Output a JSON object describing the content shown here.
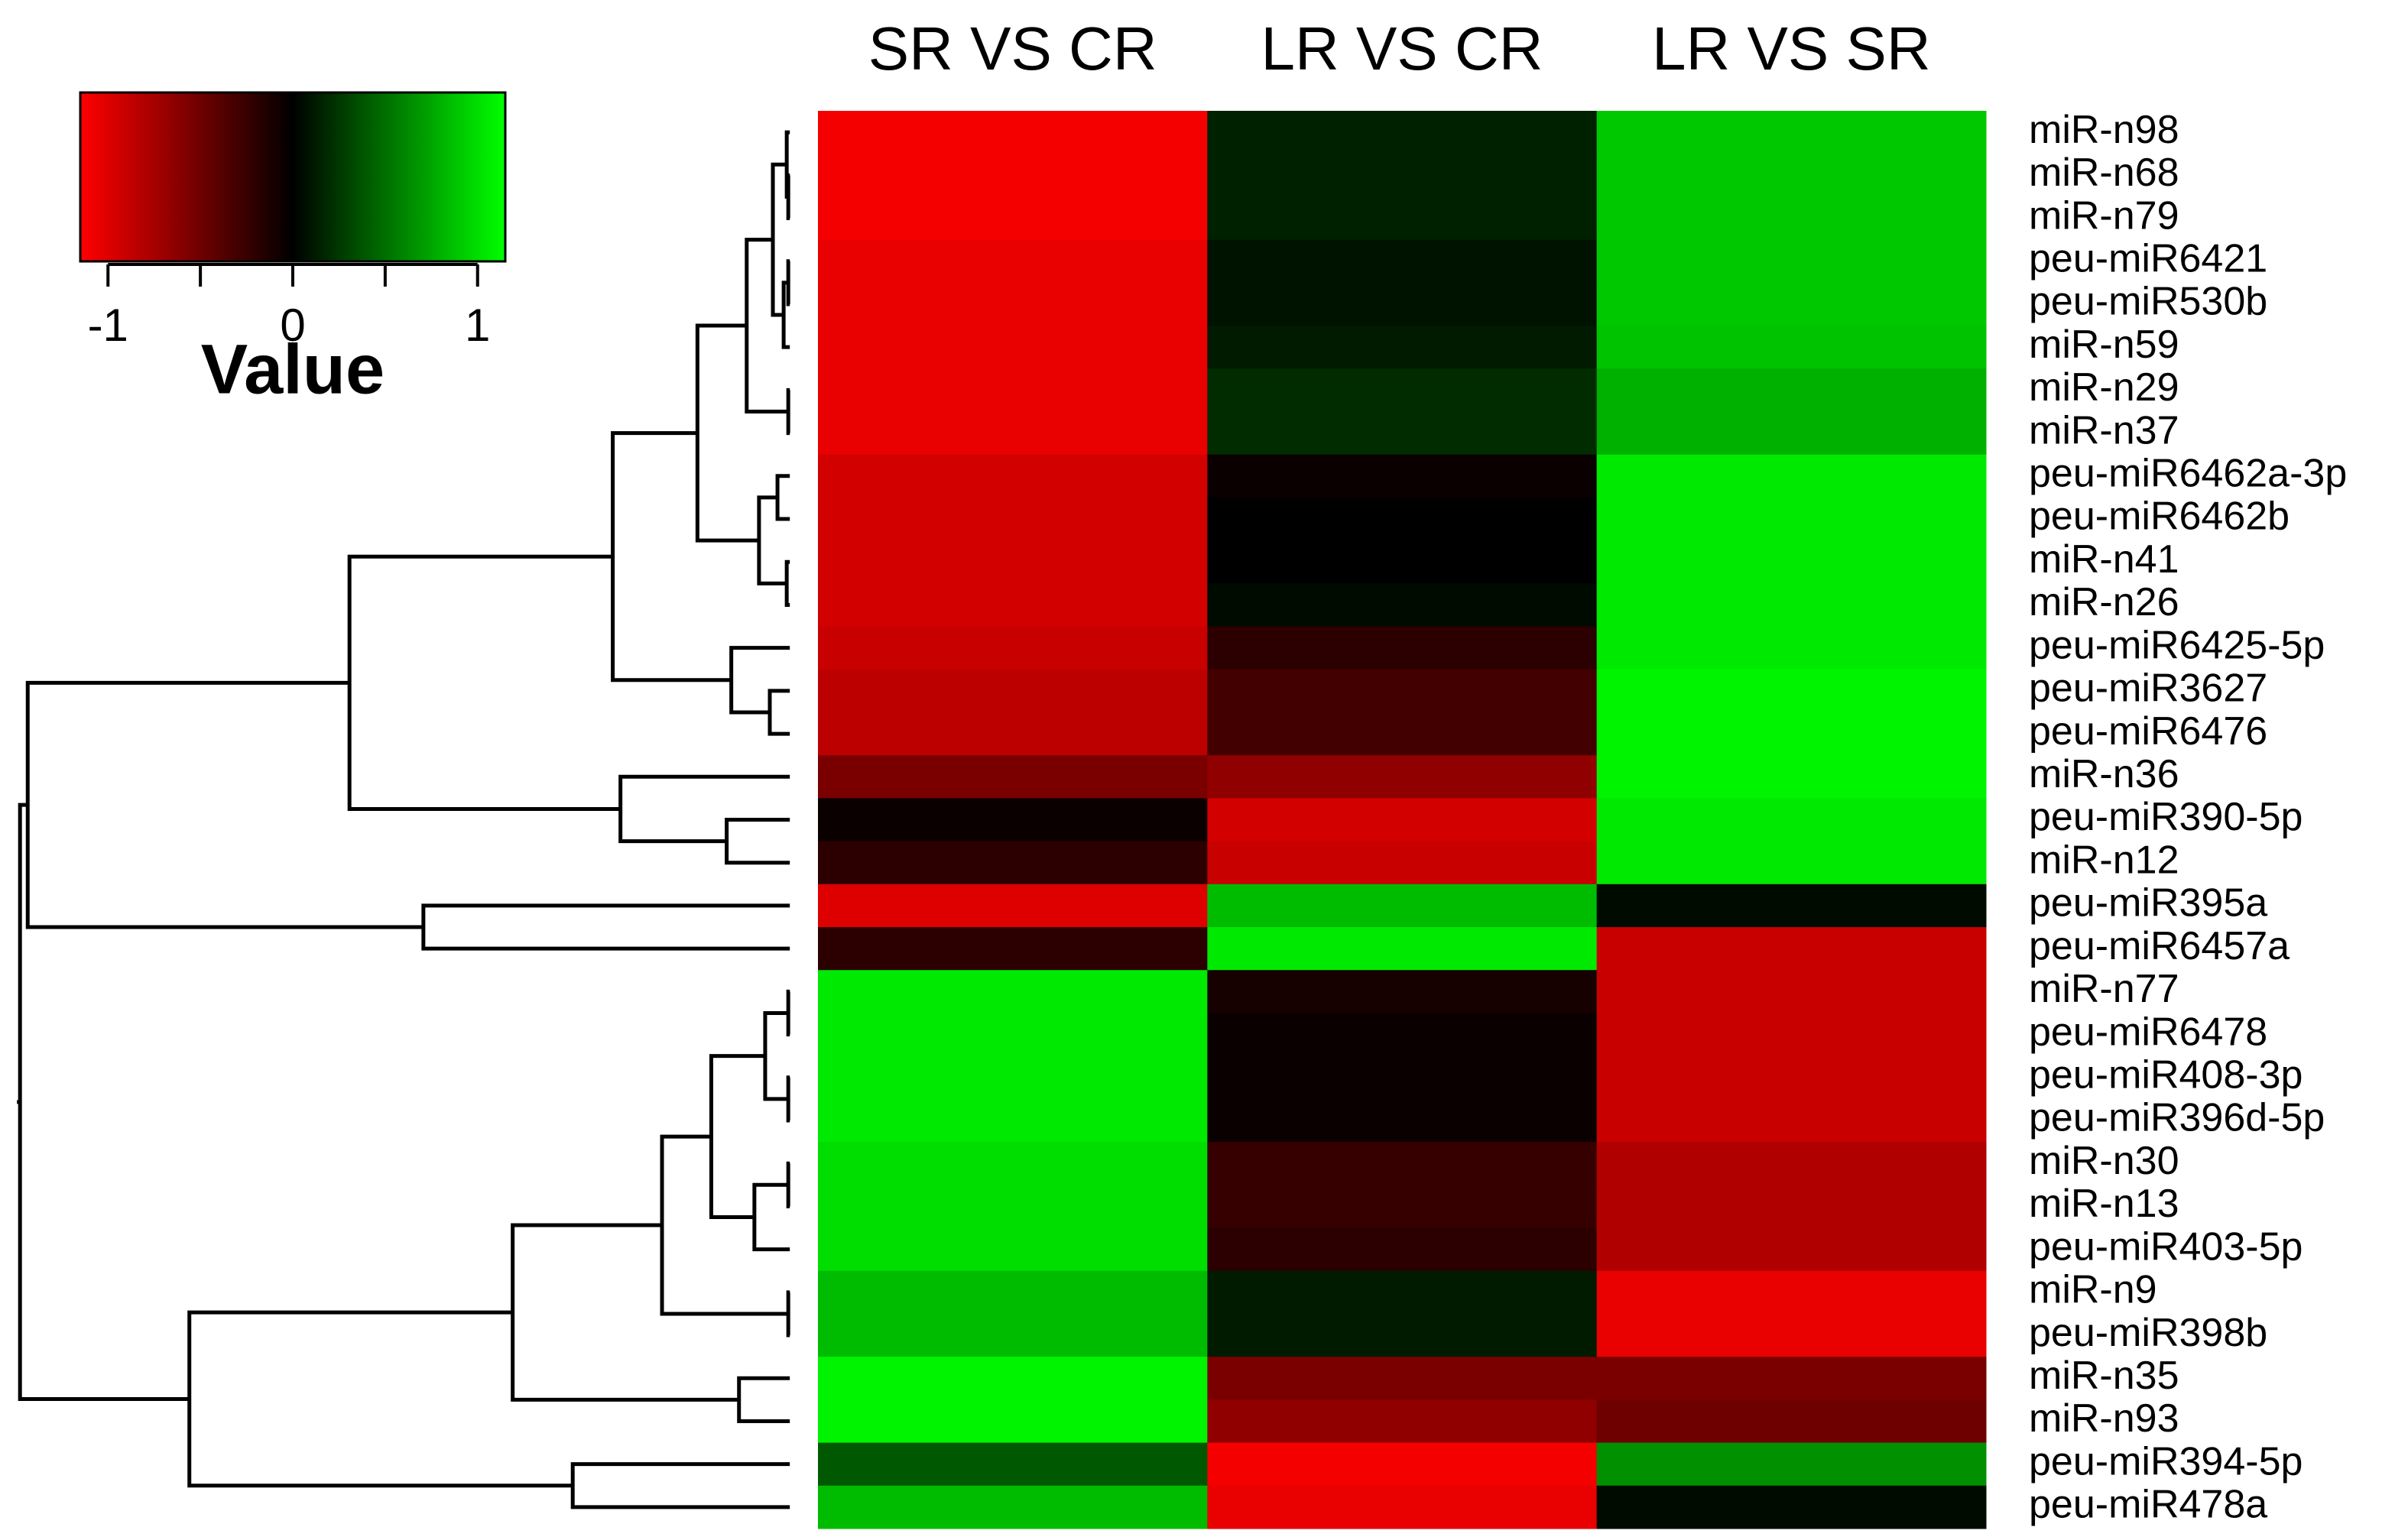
{
  "chart_data": {
    "type": "heatmap",
    "x": [
      "SR VS CR",
      "LR VS CR",
      "LR VS SR"
    ],
    "y": [
      "miR-n98",
      "miR-n68",
      "miR-n79",
      "peu-miR6421",
      "peu-miR530b",
      "miR-n59",
      "miR-n29",
      "miR-n37",
      "peu-miR6462a-3p",
      "peu-miR6462b",
      "miR-n41",
      "miR-n26",
      "peu-miR6425-5p",
      "peu-miR3627",
      "peu-miR6476",
      "miR-n36",
      "peu-miR390-5p",
      "miR-n12",
      "peu-miR395a",
      "peu-miR6457a",
      "miR-n77",
      "peu-miR6478",
      "peu-miR408-3p",
      "peu-miR396d-5p",
      "miR-n30",
      "miR-n13",
      "peu-miR403-5p",
      "miR-n9",
      "peu-miR398b",
      "miR-n35",
      "miR-n93",
      "peu-miR394-5p",
      "peu-miR478a"
    ],
    "values": [
      [
        -1.1,
        0.15,
        0.9
      ],
      [
        -1.1,
        0.15,
        0.9
      ],
      [
        -1.1,
        0.15,
        0.9
      ],
      [
        -1.05,
        0.08,
        0.9
      ],
      [
        -1.05,
        0.08,
        0.9
      ],
      [
        -1.05,
        0.12,
        0.88
      ],
      [
        -1.05,
        0.2,
        0.8
      ],
      [
        -1.05,
        0.2,
        0.8
      ],
      [
        -0.95,
        -0.05,
        1.05
      ],
      [
        -0.95,
        0.0,
        1.05
      ],
      [
        -0.95,
        0.0,
        1.05
      ],
      [
        -0.95,
        0.05,
        1.05
      ],
      [
        -0.9,
        -0.2,
        1.05
      ],
      [
        -0.85,
        -0.3,
        1.1
      ],
      [
        -0.85,
        -0.3,
        1.1
      ],
      [
        -0.55,
        -0.65,
        1.1
      ],
      [
        -0.05,
        -0.95,
        1.05
      ],
      [
        -0.2,
        -0.9,
        1.05
      ],
      [
        -1.0,
        0.85,
        0.05
      ],
      [
        -0.2,
        1.05,
        -0.9
      ],
      [
        1.05,
        -0.1,
        -0.9
      ],
      [
        1.05,
        -0.05,
        -0.9
      ],
      [
        1.05,
        -0.05,
        -0.9
      ],
      [
        1.05,
        -0.05,
        -0.9
      ],
      [
        1.0,
        -0.25,
        -0.8
      ],
      [
        1.0,
        -0.25,
        -0.8
      ],
      [
        1.0,
        -0.2,
        -0.8
      ],
      [
        0.85,
        0.12,
        -1.05
      ],
      [
        0.85,
        0.12,
        -1.05
      ],
      [
        1.1,
        -0.55,
        -0.55
      ],
      [
        1.1,
        -0.65,
        -0.5
      ],
      [
        0.4,
        -1.1,
        0.65
      ],
      [
        0.85,
        -1.05,
        0.05
      ]
    ],
    "colors": [
      "#ff0000",
      "#000000",
      "#00ff00"
    ],
    "zlim": [
      -1.15,
      1.15
    ],
    "zticks": [
      -1,
      0,
      1
    ],
    "colorbar_title": "Value"
  }
}
